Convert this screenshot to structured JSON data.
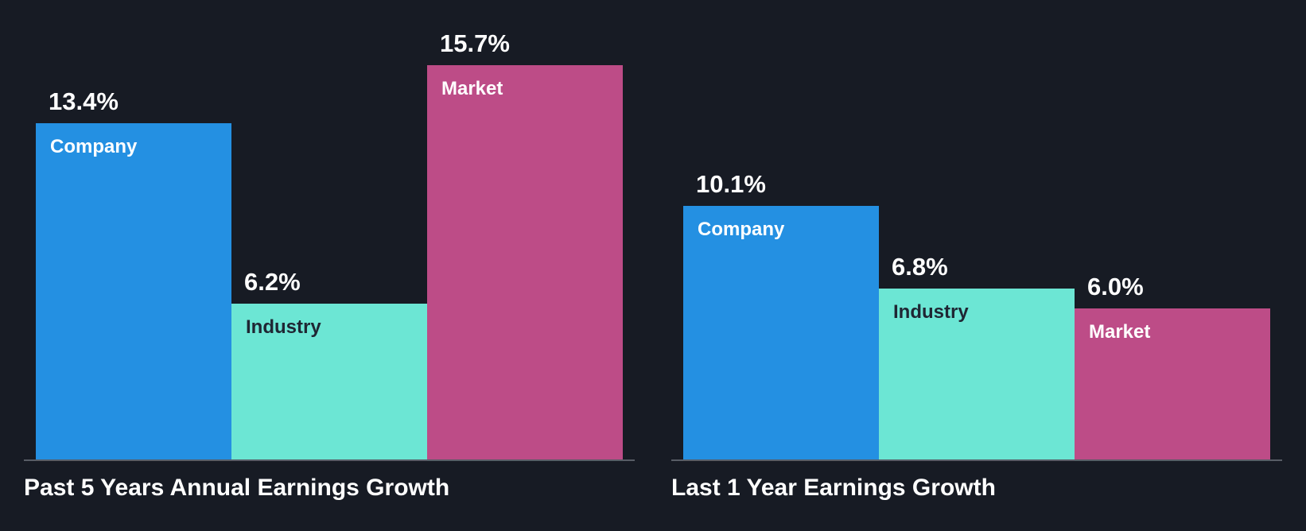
{
  "background": "#171b24",
  "axis_color": "#585d66",
  "chart_data": [
    {
      "type": "bar",
      "title": "Past 5 Years Annual Earnings Growth",
      "categories": [
        "Company",
        "Industry",
        "Market"
      ],
      "values": [
        13.4,
        6.2,
        15.7
      ],
      "value_labels": [
        "13.4%",
        "6.2%",
        "15.7%"
      ],
      "unit": "%",
      "ylim": [
        0,
        15.7
      ],
      "colors": [
        "#2490e2",
        "#6ce6d4",
        "#bd4c87"
      ],
      "category_label_colors": [
        "#ffffff",
        "#1f2633",
        "#ffffff"
      ],
      "grid": false,
      "legend": "none"
    },
    {
      "type": "bar",
      "title": "Last 1 Year Earnings Growth",
      "categories": [
        "Company",
        "Industry",
        "Market"
      ],
      "values": [
        10.1,
        6.8,
        6.0
      ],
      "value_labels": [
        "10.1%",
        "6.8%",
        "6.0%"
      ],
      "unit": "%",
      "ylim": [
        0,
        15.7
      ],
      "colors": [
        "#2490e2",
        "#6ce6d4",
        "#bd4c87"
      ],
      "category_label_colors": [
        "#ffffff",
        "#1f2633",
        "#ffffff"
      ],
      "grid": false,
      "legend": "none"
    }
  ]
}
